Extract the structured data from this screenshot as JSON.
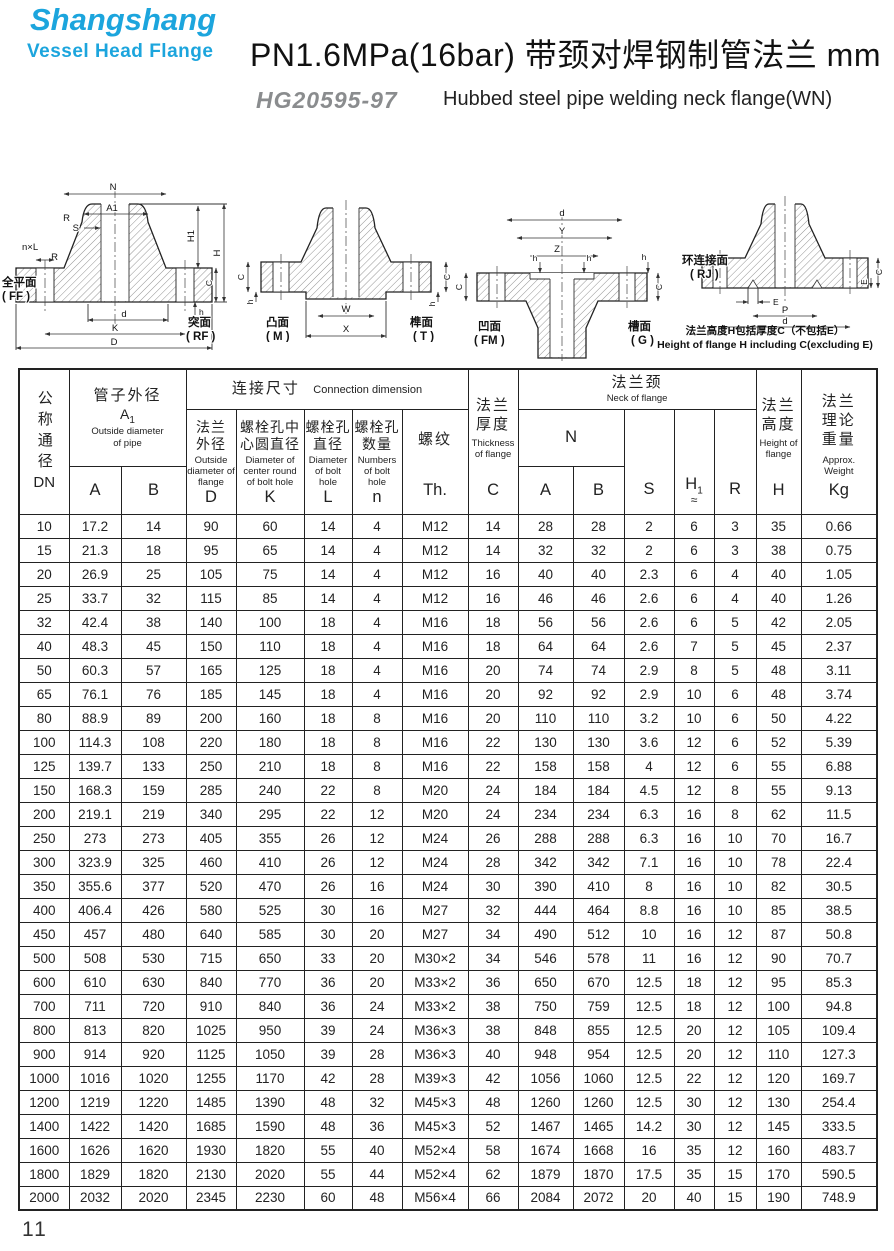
{
  "brand": {
    "name": "Shangshang",
    "tagline": "Vessel Head Flange"
  },
  "header": {
    "title": "PN1.6MPa(16bar) 带颈对焊钢制管法兰  mm",
    "standard": "HG20595-97",
    "subtitle": "Hubbed steel pipe welding neck flange(WN)"
  },
  "diagrams": {
    "wn1": {
      "dim_n": "N",
      "dim_a1": "A1",
      "dim_s": "S",
      "dim_r_top": "R",
      "dim_r_bottom": "R",
      "dim_nxl": "n×L",
      "dim_h1": "H1",
      "dim_h": "H",
      "dim_c": "C",
      "dim_hs": "h",
      "dim_d": "d",
      "dim_k": "K",
      "dim_dd": "D",
      "face_left_cn": "全平面",
      "face_left_code": "( FF )",
      "face_right_cn": "突面",
      "face_right_code": "( RF )"
    },
    "wn2": {
      "dim_w": "W",
      "dim_x": "X",
      "dim_c_left": "C",
      "dim_h_left": "h",
      "dim_c_right": "C",
      "dim_h_right": "h",
      "face_left_cn": "凸面",
      "face_left_code": "( M )",
      "face_right_cn": "榫面",
      "face_right_code": "( T )"
    },
    "wn3": {
      "dim_d": "d",
      "dim_y": "Y",
      "dim_z": "Z",
      "dim_h1": "h",
      "dim_h2": "h",
      "dim_h3": "h",
      "dim_c_left": "C",
      "dim_c_right": "C",
      "face_left_cn": "凹面",
      "face_left_code": "( FM )",
      "face_right_cn": "槽面",
      "face_right_code": "( G )"
    },
    "wn4": {
      "dim_e": "E",
      "dim_p": "P",
      "dim_d": "d",
      "dim_c": "C",
      "dim_e2": "E",
      "face_cn": "环连接面",
      "face_code": "( RJ )",
      "note_cn": "法兰高度H包括厚度C（不包括E）",
      "note_en": "Height of flange H including C(excluding E)"
    }
  },
  "table": {
    "dn": {
      "cn": "公称通径",
      "code": "DN"
    },
    "pipe": {
      "cn": "管子外径",
      "a1_main": "A",
      "a1_sub": "1",
      "en": "Outside diameter of pipe",
      "letters": [
        "A",
        "B"
      ]
    },
    "conn": {
      "cn": "连接尺寸",
      "en": "Connection dimension",
      "cols": [
        {
          "cn": "法兰外径",
          "en": "Outside diameter of flange",
          "letter": "D"
        },
        {
          "cn": "螺栓孔中心圆直径",
          "en": "Diameter of center round of bolt hole",
          "letter": "K"
        },
        {
          "cn": "螺栓孔直径",
          "en": "Diameter of bolt hole",
          "letter": "L"
        },
        {
          "cn": "螺栓孔数量",
          "en": "Numbers of bolt hole",
          "letter": "n"
        },
        {
          "cn": "螺纹",
          "en": "",
          "letter": "Th."
        }
      ]
    },
    "thick": {
      "cn": "法兰厚度",
      "en": "Thickness of flange",
      "letter": "C"
    },
    "neck": {
      "cn": "法兰颈",
      "en": "Neck of flange",
      "n": "N",
      "letters": [
        "A",
        "B"
      ],
      "s": "S",
      "h1_main": "H",
      "h1_sub": "1",
      "h1_approx": "≈",
      "r": "R"
    },
    "height": {
      "cn": "法兰高度",
      "en": "Height of flange",
      "letter": "H"
    },
    "weight": {
      "cn": "法兰理论重量",
      "en": "Approx. Weight",
      "letter": "Kg"
    },
    "rows": [
      [
        "10",
        "17.2",
        "14",
        "90",
        "60",
        "14",
        "4",
        "M12",
        "14",
        "28",
        "28",
        "2",
        "6",
        "3",
        "35",
        "0.66"
      ],
      [
        "15",
        "21.3",
        "18",
        "95",
        "65",
        "14",
        "4",
        "M12",
        "14",
        "32",
        "32",
        "2",
        "6",
        "3",
        "38",
        "0.75"
      ],
      [
        "20",
        "26.9",
        "25",
        "105",
        "75",
        "14",
        "4",
        "M12",
        "16",
        "40",
        "40",
        "2.3",
        "6",
        "4",
        "40",
        "1.05"
      ],
      [
        "25",
        "33.7",
        "32",
        "115",
        "85",
        "14",
        "4",
        "M12",
        "16",
        "46",
        "46",
        "2.6",
        "6",
        "4",
        "40",
        "1.26"
      ],
      [
        "32",
        "42.4",
        "38",
        "140",
        "100",
        "18",
        "4",
        "M16",
        "18",
        "56",
        "56",
        "2.6",
        "6",
        "5",
        "42",
        "2.05"
      ],
      [
        "40",
        "48.3",
        "45",
        "150",
        "110",
        "18",
        "4",
        "M16",
        "18",
        "64",
        "64",
        "2.6",
        "7",
        "5",
        "45",
        "2.37"
      ],
      [
        "50",
        "60.3",
        "57",
        "165",
        "125",
        "18",
        "4",
        "M16",
        "20",
        "74",
        "74",
        "2.9",
        "8",
        "5",
        "48",
        "3.11"
      ],
      [
        "65",
        "76.1",
        "76",
        "185",
        "145",
        "18",
        "4",
        "M16",
        "20",
        "92",
        "92",
        "2.9",
        "10",
        "6",
        "48",
        "3.74"
      ],
      [
        "80",
        "88.9",
        "89",
        "200",
        "160",
        "18",
        "8",
        "M16",
        "20",
        "110",
        "110",
        "3.2",
        "10",
        "6",
        "50",
        "4.22"
      ],
      [
        "100",
        "114.3",
        "108",
        "220",
        "180",
        "18",
        "8",
        "M16",
        "22",
        "130",
        "130",
        "3.6",
        "12",
        "6",
        "52",
        "5.39"
      ],
      [
        "125",
        "139.7",
        "133",
        "250",
        "210",
        "18",
        "8",
        "M16",
        "22",
        "158",
        "158",
        "4",
        "12",
        "6",
        "55",
        "6.88"
      ],
      [
        "150",
        "168.3",
        "159",
        "285",
        "240",
        "22",
        "8",
        "M20",
        "24",
        "184",
        "184",
        "4.5",
        "12",
        "8",
        "55",
        "9.13"
      ],
      [
        "200",
        "219.1",
        "219",
        "340",
        "295",
        "22",
        "12",
        "M20",
        "24",
        "234",
        "234",
        "6.3",
        "16",
        "8",
        "62",
        "11.5"
      ],
      [
        "250",
        "273",
        "273",
        "405",
        "355",
        "26",
        "12",
        "M24",
        "26",
        "288",
        "288",
        "6.3",
        "16",
        "10",
        "70",
        "16.7"
      ],
      [
        "300",
        "323.9",
        "325",
        "460",
        "410",
        "26",
        "12",
        "M24",
        "28",
        "342",
        "342",
        "7.1",
        "16",
        "10",
        "78",
        "22.4"
      ],
      [
        "350",
        "355.6",
        "377",
        "520",
        "470",
        "26",
        "16",
        "M24",
        "30",
        "390",
        "410",
        "8",
        "16",
        "10",
        "82",
        "30.5"
      ],
      [
        "400",
        "406.4",
        "426",
        "580",
        "525",
        "30",
        "16",
        "M27",
        "32",
        "444",
        "464",
        "8.8",
        "16",
        "10",
        "85",
        "38.5"
      ],
      [
        "450",
        "457",
        "480",
        "640",
        "585",
        "30",
        "20",
        "M27",
        "34",
        "490",
        "512",
        "10",
        "16",
        "12",
        "87",
        "50.8"
      ],
      [
        "500",
        "508",
        "530",
        "715",
        "650",
        "33",
        "20",
        "M30×2",
        "34",
        "546",
        "578",
        "11",
        "16",
        "12",
        "90",
        "70.7"
      ],
      [
        "600",
        "610",
        "630",
        "840",
        "770",
        "36",
        "20",
        "M33×2",
        "36",
        "650",
        "670",
        "12.5",
        "18",
        "12",
        "95",
        "85.3"
      ],
      [
        "700",
        "711",
        "720",
        "910",
        "840",
        "36",
        "24",
        "M33×2",
        "38",
        "750",
        "759",
        "12.5",
        "18",
        "12",
        "100",
        "94.8"
      ],
      [
        "800",
        "813",
        "820",
        "1025",
        "950",
        "39",
        "24",
        "M36×3",
        "38",
        "848",
        "855",
        "12.5",
        "20",
        "12",
        "105",
        "109.4"
      ],
      [
        "900",
        "914",
        "920",
        "1125",
        "1050",
        "39",
        "28",
        "M36×3",
        "40",
        "948",
        "954",
        "12.5",
        "20",
        "12",
        "110",
        "127.3"
      ],
      [
        "1000",
        "1016",
        "1020",
        "1255",
        "1170",
        "42",
        "28",
        "M39×3",
        "42",
        "1056",
        "1060",
        "12.5",
        "22",
        "12",
        "120",
        "169.7"
      ],
      [
        "1200",
        "1219",
        "1220",
        "1485",
        "1390",
        "48",
        "32",
        "M45×3",
        "48",
        "1260",
        "1260",
        "12.5",
        "30",
        "12",
        "130",
        "254.4"
      ],
      [
        "1400",
        "1422",
        "1420",
        "1685",
        "1590",
        "48",
        "36",
        "M45×3",
        "52",
        "1467",
        "1465",
        "14.2",
        "30",
        "12",
        "145",
        "333.5"
      ],
      [
        "1600",
        "1626",
        "1620",
        "1930",
        "1820",
        "55",
        "40",
        "M52×4",
        "58",
        "1674",
        "1668",
        "16",
        "35",
        "12",
        "160",
        "483.7"
      ],
      [
        "1800",
        "1829",
        "1820",
        "2130",
        "2020",
        "55",
        "44",
        "M52×4",
        "62",
        "1879",
        "1870",
        "17.5",
        "35",
        "15",
        "170",
        "590.5"
      ],
      [
        "2000",
        "2032",
        "2020",
        "2345",
        "2230",
        "60",
        "48",
        "M56×4",
        "66",
        "2084",
        "2072",
        "20",
        "40",
        "15",
        "190",
        "748.9"
      ]
    ]
  },
  "page_number": "11"
}
